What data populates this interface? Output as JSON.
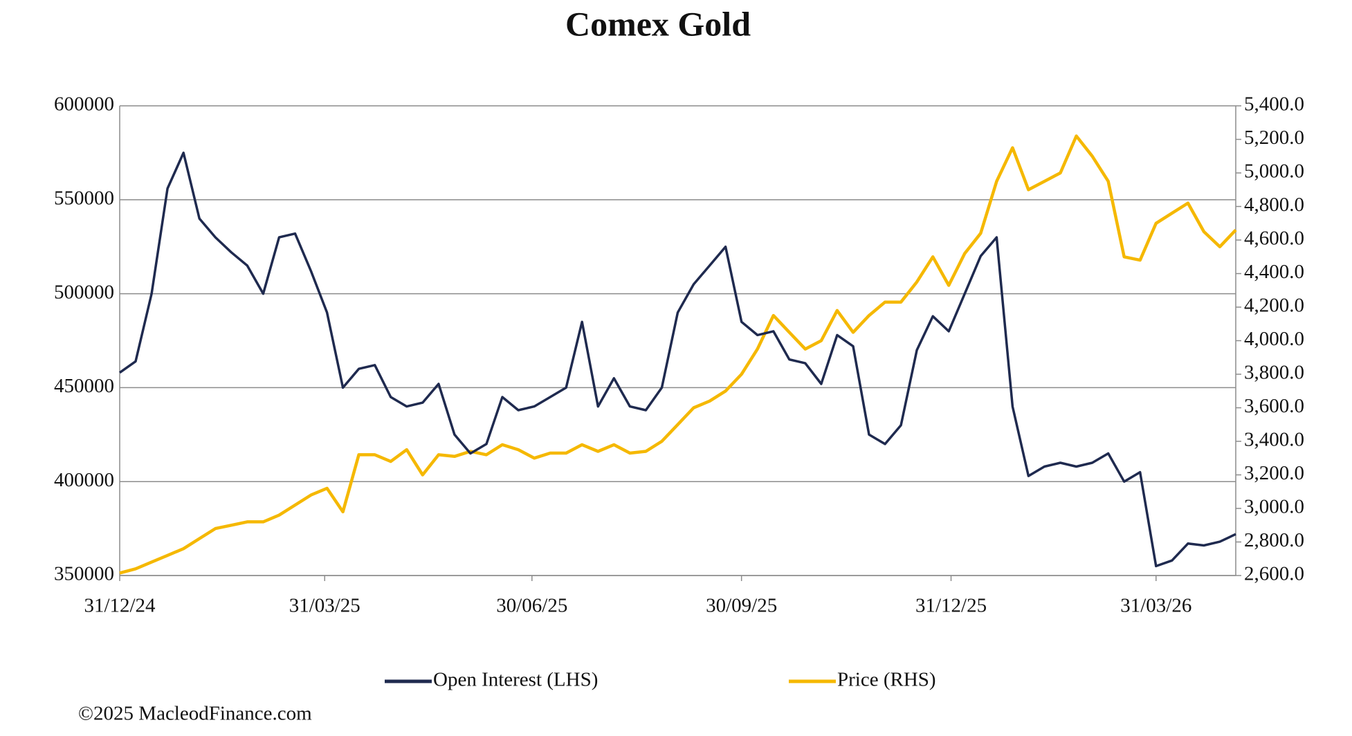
{
  "chart_data": {
    "type": "line",
    "title": "Comex Gold",
    "x": [
      "2024-12-31",
      "2025-01-07",
      "2025-01-14",
      "2025-01-21",
      "2025-01-28",
      "2025-02-04",
      "2025-02-11",
      "2025-02-18",
      "2025-02-25",
      "2025-03-04",
      "2025-03-11",
      "2025-03-18",
      "2025-03-25",
      "2025-04-01",
      "2025-04-08",
      "2025-04-15",
      "2025-04-22",
      "2025-04-29",
      "2025-05-06",
      "2025-05-13",
      "2025-05-20",
      "2025-05-27",
      "2025-06-03",
      "2025-06-10",
      "2025-06-17",
      "2025-06-24",
      "2025-07-01",
      "2025-07-08",
      "2025-07-15",
      "2025-07-22",
      "2025-07-29",
      "2025-08-05",
      "2025-08-12",
      "2025-08-19",
      "2025-08-26",
      "2025-09-02",
      "2025-09-09",
      "2025-09-16",
      "2025-09-23",
      "2025-09-30",
      "2025-10-07",
      "2025-10-14",
      "2025-10-21",
      "2025-10-28",
      "2025-11-04",
      "2025-11-11",
      "2025-11-18",
      "2025-11-25",
      "2025-12-02",
      "2025-12-09",
      "2025-12-16",
      "2025-12-23",
      "2025-12-30",
      "2026-01-06",
      "2026-01-13",
      "2026-01-20",
      "2026-01-27",
      "2026-02-03",
      "2026-02-10",
      "2026-02-17",
      "2026-02-24",
      "2026-03-03",
      "2026-03-10",
      "2026-03-17",
      "2026-03-24",
      "2026-03-31",
      "2026-04-07",
      "2026-04-14",
      "2026-04-21",
      "2026-04-28",
      "2026-05-05"
    ],
    "xlim": [
      "2024-12-31",
      "2026-05-05"
    ],
    "xticks": [
      {
        "value": "2024-12-31",
        "label": "31/12/24"
      },
      {
        "value": "2025-03-31",
        "label": "31/03/25"
      },
      {
        "value": "2025-06-30",
        "label": "30/06/25"
      },
      {
        "value": "2025-09-30",
        "label": "30/09/25"
      },
      {
        "value": "2025-12-31",
        "label": "31/12/25"
      },
      {
        "value": "2026-03-31",
        "label": "31/03/26"
      }
    ],
    "ylim": [
      350000,
      600000
    ],
    "yticks": [
      350000,
      400000,
      450000,
      500000,
      550000,
      600000
    ],
    "y2lim": [
      2600,
      5400
    ],
    "y2ticks": [
      {
        "value": 2600,
        "label": "2,600.0"
      },
      {
        "value": 2800,
        "label": "2,800.0"
      },
      {
        "value": 3000,
        "label": "3,000.0"
      },
      {
        "value": 3200,
        "label": "3,200.0"
      },
      {
        "value": 3400,
        "label": "3,400.0"
      },
      {
        "value": 3600,
        "label": "3,600.0"
      },
      {
        "value": 3800,
        "label": "3,800.0"
      },
      {
        "value": 4000,
        "label": "4,000.0"
      },
      {
        "value": 4200,
        "label": "4,200.0"
      },
      {
        "value": 4400,
        "label": "4,400.0"
      },
      {
        "value": 4600,
        "label": "4,600.0"
      },
      {
        "value": 4800,
        "label": "4,800.0"
      },
      {
        "value": 5000,
        "label": "5,000.0"
      },
      {
        "value": 5200,
        "label": "5,200.0"
      },
      {
        "value": 5400,
        "label": "5,400.0"
      }
    ],
    "grid": true,
    "series": [
      {
        "name": "Open Interest (LHS)",
        "color": "#1f2a4f",
        "values": [
          458000,
          464000,
          500000,
          556000,
          575000,
          540000,
          530000,
          522000,
          515000,
          500000,
          530000,
          532000,
          512000,
          490000,
          450000,
          460000,
          462000,
          445000,
          440000,
          442000,
          452000,
          425000,
          415000,
          420000,
          445000,
          438000,
          440000,
          445000,
          450000,
          485000,
          440000,
          455000,
          440000,
          438000,
          450000,
          490000,
          505000,
          515000,
          525000,
          485000,
          478000,
          480000,
          465000,
          463000,
          452000,
          478000,
          472000,
          425000,
          420000,
          430000,
          470000,
          488000,
          480000,
          500000,
          520000,
          530000,
          440000,
          403000,
          408000,
          410000,
          408000,
          410000,
          415000,
          400000,
          405000,
          355000,
          358000,
          367000,
          366000,
          368000,
          372000
        ]
      },
      {
        "name": "Price (RHS)",
        "color": "#f5b800",
        "axis": "y2",
        "values": [
          2615,
          2640,
          2680,
          2720,
          2760,
          2820,
          2880,
          2900,
          2920,
          2920,
          2960,
          3020,
          3080,
          3120,
          2980,
          3320,
          3320,
          3280,
          3350,
          3200,
          3320,
          3310,
          3340,
          3320,
          3380,
          3350,
          3300,
          3330,
          3330,
          3380,
          3340,
          3380,
          3330,
          3340,
          3400,
          3500,
          3600,
          3640,
          3700,
          3800,
          3950,
          4150,
          4050,
          3950,
          4000,
          4180,
          4050,
          4150,
          4230,
          4230,
          4350,
          4500,
          4330,
          4520,
          4640,
          4950,
          5150,
          4900,
          4950,
          5000,
          5220,
          5100,
          4950,
          4500,
          4480,
          4700,
          4760,
          4820,
          4650,
          4560,
          4660
        ]
      }
    ],
    "credit": "©2025 MacleodFinance.com"
  }
}
